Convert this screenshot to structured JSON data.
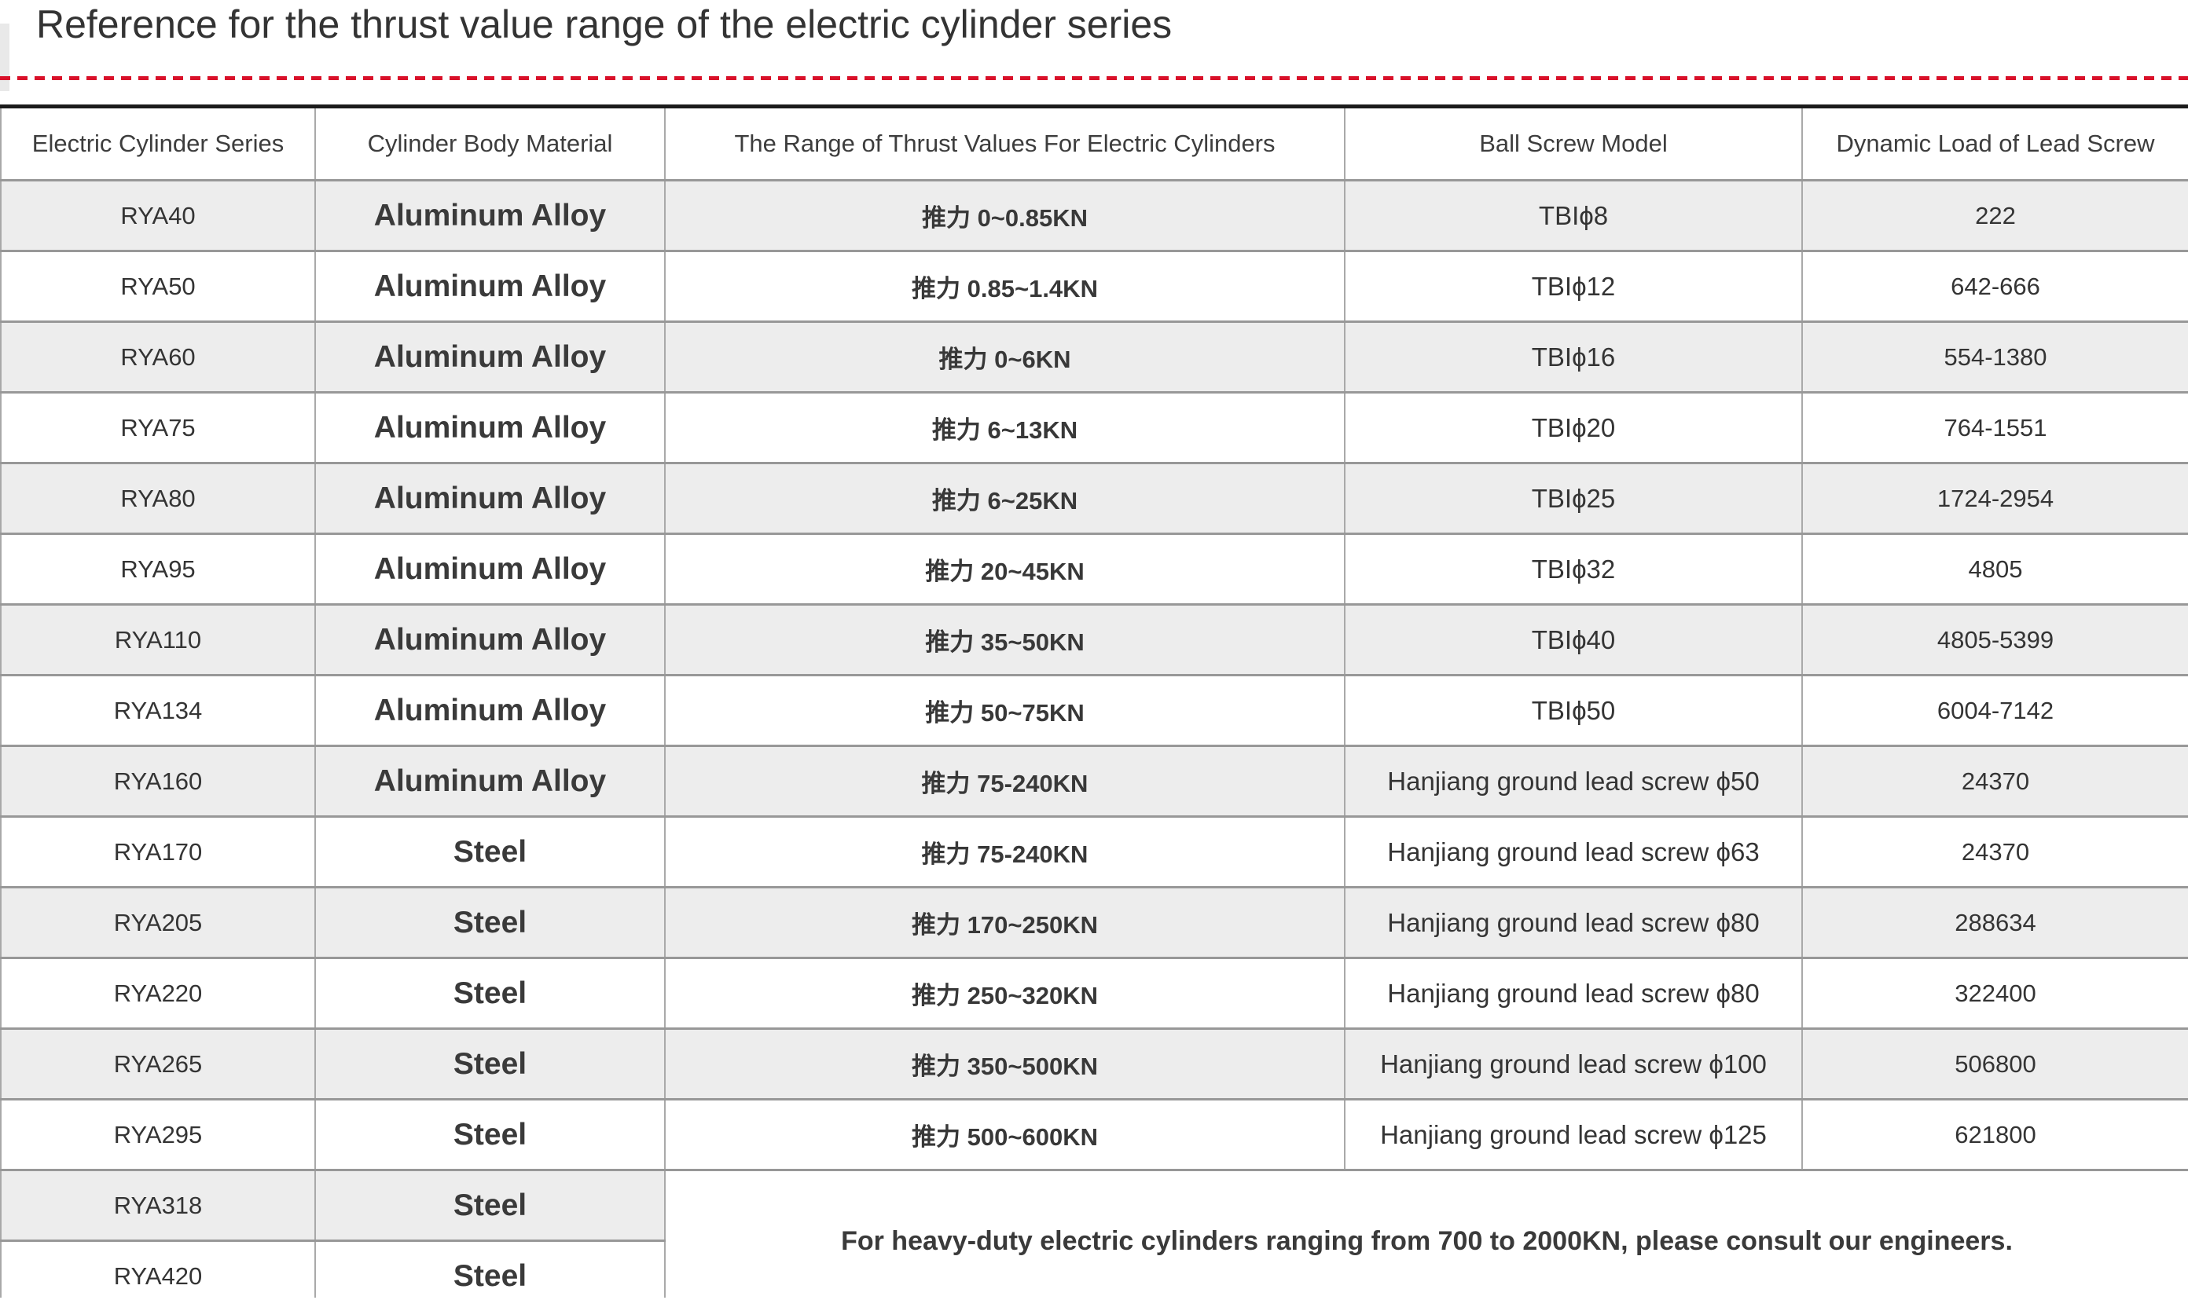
{
  "page": {
    "title": "Reference for the thrust value range of the electric cylinder series"
  },
  "style_tokens": {
    "dashed_divider_color": "#d9112a",
    "row_stripe_color": "#ededed",
    "table_top_border_color": "#1b1b1b",
    "grid_line_color": "#a9a9a9",
    "text_color": "#3a3a3a"
  },
  "table": {
    "headers": [
      "Electric Cylinder Series",
      "Cylinder Body Material",
      "The Range of Thrust Values For Electric Cylinders",
      "Ball Screw Model",
      "Dynamic Load of Lead Screw"
    ],
    "rows": [
      {
        "series": "RYA40",
        "material": "Aluminum Alloy",
        "thrust": "推力 0~0.85KN",
        "screw": "TBIϕ8",
        "load": "222"
      },
      {
        "series": "RYA50",
        "material": "Aluminum Alloy",
        "thrust": "推力 0.85~1.4KN",
        "screw": "TBIϕ12",
        "load": "642-666"
      },
      {
        "series": "RYA60",
        "material": "Aluminum Alloy",
        "thrust": "推力 0~6KN",
        "screw": "TBIϕ16",
        "load": "554-1380"
      },
      {
        "series": "RYA75",
        "material": "Aluminum Alloy",
        "thrust": "推力 6~13KN",
        "screw": "TBIϕ20",
        "load": "764-1551"
      },
      {
        "series": "RYA80",
        "material": "Aluminum Alloy",
        "thrust": "推力 6~25KN",
        "screw": "TBIϕ25",
        "load": "1724-2954"
      },
      {
        "series": "RYA95",
        "material": "Aluminum Alloy",
        "thrust": "推力 20~45KN",
        "screw": "TBIϕ32",
        "load": "4805"
      },
      {
        "series": "RYA110",
        "material": "Aluminum Alloy",
        "thrust": "推力 35~50KN",
        "screw": "TBIϕ40",
        "load": "4805-5399"
      },
      {
        "series": "RYA134",
        "material": "Aluminum Alloy",
        "thrust": "推力 50~75KN",
        "screw": "TBIϕ50",
        "load": "6004-7142"
      },
      {
        "series": "RYA160",
        "material": "Aluminum Alloy",
        "thrust": "推力 75-240KN",
        "screw": "Hanjiang ground lead screw ϕ50",
        "load": "24370"
      },
      {
        "series": "RYA170",
        "material": "Steel",
        "thrust": "推力 75-240KN",
        "screw": "Hanjiang ground lead screw ϕ63",
        "load": "24370"
      },
      {
        "series": "RYA205",
        "material": "Steel",
        "thrust": "推力 170~250KN",
        "screw": "Hanjiang ground lead screw ϕ80",
        "load": "288634"
      },
      {
        "series": "RYA220",
        "material": "Steel",
        "thrust": "推力 250~320KN",
        "screw": "Hanjiang ground lead screw ϕ80",
        "load": "322400"
      },
      {
        "series": "RYA265",
        "material": "Steel",
        "thrust": "推力 350~500KN",
        "screw": "Hanjiang ground lead screw ϕ100",
        "load": "506800"
      },
      {
        "series": "RYA295",
        "material": "Steel",
        "thrust": "推力 500~600KN",
        "screw": "Hanjiang ground lead screw ϕ125",
        "load": "621800"
      },
      {
        "series": "RYA318",
        "material": "Steel"
      },
      {
        "series": "RYA420",
        "material": "Steel"
      }
    ],
    "note": "For heavy-duty electric cylinders ranging from 700 to 2000KN, please consult our engineers."
  }
}
